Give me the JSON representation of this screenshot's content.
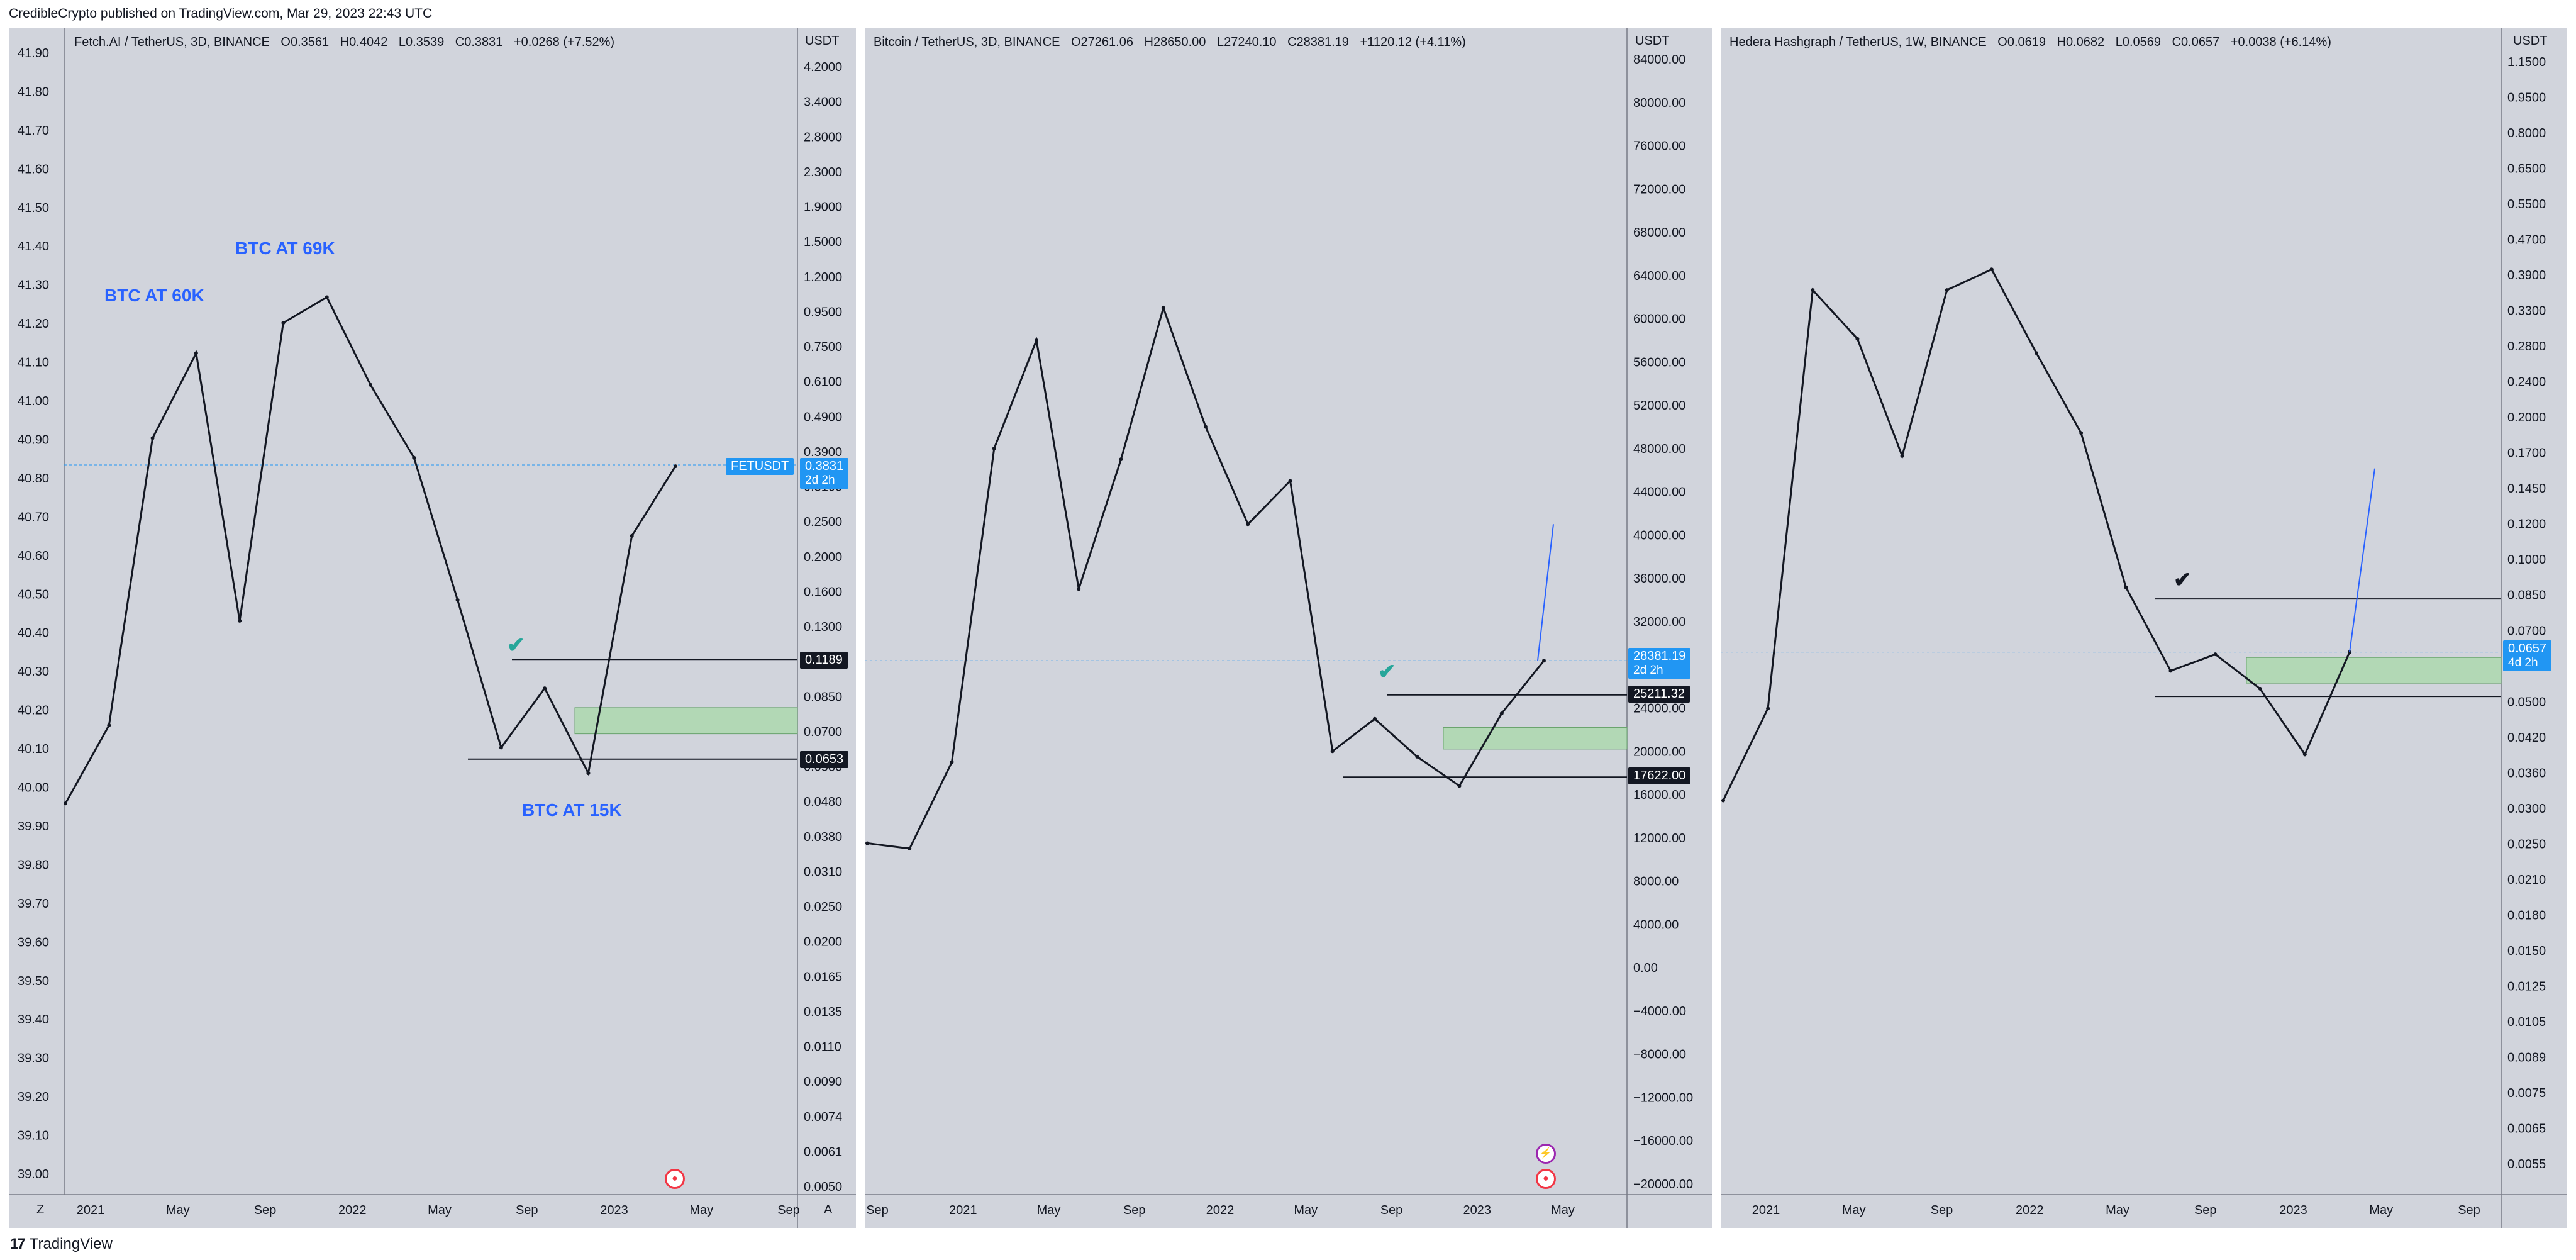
{
  "header": {
    "published": "CredibleCrypto published on TradingView.com, Mar 29, 2023 22:43 UTC"
  },
  "footer": {
    "brand_logo": "17",
    "brand": "TradingView"
  },
  "colors": {
    "panel_bg": "#d1d4dc",
    "candle": "#131722",
    "blue": "#2962ff",
    "tag_blue": "#2196f3",
    "zone": "#b2d8b5",
    "check": "#26a69a"
  },
  "charts": {
    "fet": {
      "legend": {
        "title": "Fetch.AI / TetherUS, 3D, BINANCE",
        "o": "O0.3561",
        "h": "H0.4042",
        "l": "L0.3539",
        "c": "C0.3831",
        "chg": "+0.0268 (+7.52%)"
      },
      "unit": "USDT",
      "left_ticks": [
        "41.90",
        "41.80",
        "41.70",
        "41.60",
        "41.50",
        "41.40",
        "41.30",
        "41.20",
        "41.10",
        "41.00",
        "40.90",
        "40.80",
        "40.70",
        "40.60",
        "40.50",
        "40.40",
        "40.30",
        "40.20",
        "40.10",
        "40.00",
        "39.90",
        "39.80",
        "39.70",
        "39.60",
        "39.50",
        "39.40",
        "39.30",
        "39.20",
        "39.10",
        "39.00"
      ],
      "right_ticks": [
        "4.2000",
        "3.4000",
        "2.8000",
        "2.3000",
        "1.9000",
        "1.5000",
        "1.2000",
        "0.9500",
        "0.7500",
        "0.6100",
        "0.4900",
        "0.3900",
        "0.3100",
        "0.2500",
        "0.2000",
        "0.1600",
        "0.1300",
        "0.1050",
        "0.0850",
        "0.0700",
        "0.0580",
        "0.0480",
        "0.0380",
        "0.0310",
        "0.0250",
        "0.0200",
        "0.0165",
        "0.0135",
        "0.0110",
        "0.0090",
        "0.0074",
        "0.0061",
        "0.0050"
      ],
      "x_ticks": [
        "2021",
        "May",
        "Sep",
        "2022",
        "May",
        "Sep",
        "2023",
        "May",
        "Sep"
      ],
      "corner_left": "Z",
      "corner_right": "A",
      "annotations": [
        "BTC AT 60K",
        "BTC AT 69K",
        "BTC AT 15K"
      ],
      "symbol": "FETUSDT",
      "tags": {
        "price": "0.3831",
        "countdown": "2d 2h",
        "top": "0.1189",
        "bottom": "0.0653"
      }
    },
    "btc": {
      "legend": {
        "title": "Bitcoin / TetherUS, 3D, BINANCE",
        "o": "O27261.06",
        "h": "H28650.00",
        "l": "L27240.10",
        "c": "C28381.19",
        "chg": "+1120.12 (+4.11%)"
      },
      "unit": "USDT",
      "right_ticks": [
        "84000.00",
        "80000.00",
        "76000.00",
        "72000.00",
        "68000.00",
        "64000.00",
        "60000.00",
        "56000.00",
        "52000.00",
        "48000.00",
        "44000.00",
        "40000.00",
        "36000.00",
        "32000.00",
        "28000.00",
        "24000.00",
        "20000.00",
        "16000.00",
        "12000.00",
        "8000.00",
        "4000.00",
        "0.00",
        "−4000.00",
        "−8000.00",
        "−12000.00",
        "−16000.00",
        "−20000.00"
      ],
      "x_ticks": [
        "Sep",
        "2021",
        "May",
        "Sep",
        "2022",
        "May",
        "Sep",
        "2023",
        "May"
      ],
      "tags": {
        "price": "28381.19",
        "countdown": "2d 2h",
        "top": "25211.32",
        "bottom": "17622.00"
      }
    },
    "hbar": {
      "legend": {
        "title": "Hedera Hashgraph / TetherUS, 1W, BINANCE",
        "o": "O0.0619",
        "h": "H0.0682",
        "l": "L0.0569",
        "c": "C0.0657",
        "chg": "+0.0038 (+6.14%)"
      },
      "unit": "USDT",
      "right_ticks": [
        "1.1500",
        "0.9500",
        "0.8000",
        "0.6500",
        "0.5500",
        "0.4700",
        "0.3900",
        "0.3300",
        "0.2800",
        "0.2400",
        "0.2000",
        "0.1700",
        "0.1450",
        "0.1200",
        "0.1000",
        "0.0850",
        "0.0700",
        "0.0600",
        "0.0500",
        "0.0420",
        "0.0360",
        "0.0300",
        "0.0250",
        "0.0210",
        "0.0180",
        "0.0150",
        "0.0125",
        "0.0105",
        "0.0089",
        "0.0075",
        "0.0065",
        "0.0055"
      ],
      "x_ticks": [
        "2021",
        "May",
        "Sep",
        "2022",
        "May",
        "Sep",
        "2023",
        "May",
        "Sep"
      ],
      "tags": {
        "price": "0.0657",
        "countdown": "4d 2h"
      }
    }
  },
  "chart_data": [
    {
      "type": "line",
      "title": "Fetch.AI / TetherUS, 3D, BINANCE",
      "ylabel": "USDT",
      "y_scale": "log",
      "x": [
        "2020-11",
        "2021-01",
        "2021-03",
        "2021-05",
        "2021-07",
        "2021-09",
        "2021-11",
        "2022-01",
        "2022-03",
        "2022-05",
        "2022-07",
        "2022-09",
        "2022-11",
        "2023-01",
        "2023-03"
      ],
      "series": [
        {
          "values": [
            0.05,
            0.08,
            0.45,
            0.75,
            0.15,
            0.9,
            1.05,
            0.62,
            0.4,
            0.17,
            0.07,
            0.1,
            0.06,
            0.25,
            0.38
          ]
        }
      ],
      "annotations": [
        "BTC AT 60K",
        "BTC AT 69K",
        "BTC AT 15K"
      ]
    },
    {
      "type": "line",
      "title": "Bitcoin / TetherUS, 3D, BINANCE",
      "ylabel": "USDT",
      "x": [
        "2020-08",
        "2020-10",
        "2020-12",
        "2021-02",
        "2021-04",
        "2021-06",
        "2021-08",
        "2021-10",
        "2021-12",
        "2022-02",
        "2022-04",
        "2022-06",
        "2022-08",
        "2022-10",
        "2022-12",
        "2023-02",
        "2023-03"
      ],
      "series": [
        {
          "values": [
            11500,
            11000,
            19000,
            48000,
            58000,
            35000,
            47000,
            61000,
            50000,
            41000,
            45000,
            20000,
            23000,
            19500,
            16800,
            23500,
            28381
          ]
        }
      ],
      "ylim": [
        -20000,
        84000
      ]
    },
    {
      "type": "line",
      "title": "Hedera Hashgraph / TetherUS, 1W, BINANCE",
      "ylabel": "USDT",
      "y_scale": "log",
      "x": [
        "2020-12",
        "2021-02",
        "2021-03",
        "2021-05",
        "2021-07",
        "2021-09",
        "2021-11",
        "2022-01",
        "2022-03",
        "2022-05",
        "2022-07",
        "2022-09",
        "2022-11",
        "2023-01",
        "2023-03"
      ],
      "series": [
        {
          "values": [
            0.032,
            0.05,
            0.38,
            0.3,
            0.17,
            0.38,
            0.42,
            0.28,
            0.19,
            0.09,
            0.06,
            0.065,
            0.055,
            0.04,
            0.0657
          ]
        }
      ]
    }
  ]
}
